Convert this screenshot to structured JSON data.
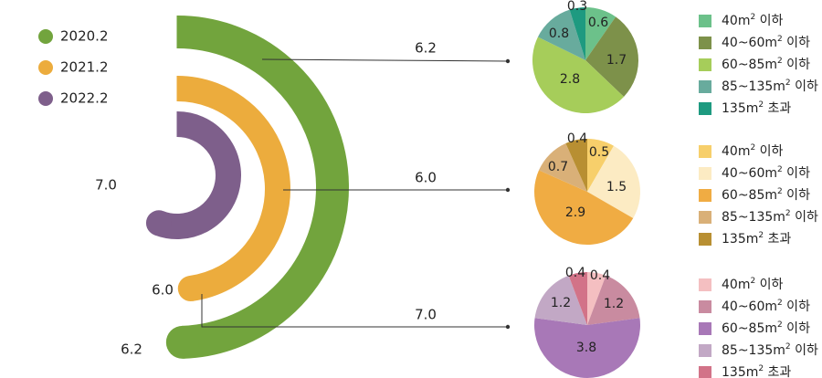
{
  "chart_data": [
    {
      "type": "radial-bar",
      "legend": [
        {
          "label": "2020.2",
          "color": "#72a43d"
        },
        {
          "label": "2021.2",
          "color": "#ecac3d"
        },
        {
          "label": "2022.2",
          "color": "#7e5f8b"
        }
      ],
      "series": [
        {
          "name": "2020.2",
          "value": 6.2,
          "color": "#72a43d"
        },
        {
          "name": "2021.2",
          "value": 6.0,
          "color": "#ecac3d"
        },
        {
          "name": "2022.2",
          "value": 7.0,
          "color": "#7e5f8b"
        }
      ],
      "value_labels": [
        "6.2",
        "6.0",
        "7.0"
      ],
      "callout_labels": [
        "6.2",
        "6.0",
        "7.0"
      ]
    },
    {
      "type": "pie",
      "series_name": "2020.2",
      "categories": [
        "40m² 이하",
        "40~60m² 이하",
        "60~85m² 이하",
        "85~135m² 이하",
        "135m² 초과"
      ],
      "values": [
        0.6,
        1.7,
        2.8,
        0.8,
        0.3
      ],
      "labels": [
        "0.6",
        "1.7",
        "2.8",
        "0.8",
        "0.3"
      ],
      "colors": [
        "#6cc18a",
        "#7d914a",
        "#a6cd5a",
        "#68ab9d",
        "#1e9a80"
      ]
    },
    {
      "type": "pie",
      "series_name": "2021.2",
      "categories": [
        "40m² 이하",
        "40~60m² 이하",
        "60~85m² 이하",
        "85~135m² 이하",
        "135m² 초과"
      ],
      "values": [
        0.5,
        1.5,
        2.9,
        0.7,
        0.4
      ],
      "labels": [
        "0.5",
        "1.5",
        "2.9",
        "0.7",
        "0.4"
      ],
      "colors": [
        "#f7cf6b",
        "#fcebc3",
        "#f0ac43",
        "#d9b078",
        "#b88f32"
      ]
    },
    {
      "type": "pie",
      "series_name": "2022.2",
      "categories": [
        "40m² 이하",
        "40~60m² 이하",
        "60~85m² 이하",
        "85~135m² 이하",
        "135m² 초과"
      ],
      "values": [
        0.4,
        1.2,
        3.8,
        1.2,
        0.4
      ],
      "labels": [
        "0.4",
        "1.2",
        "3.8",
        "1.2",
        "0.4"
      ],
      "colors": [
        "#f4bfc1",
        "#c98ba0",
        "#a878b7",
        "#c2a8c5",
        "#d27388"
      ]
    }
  ]
}
